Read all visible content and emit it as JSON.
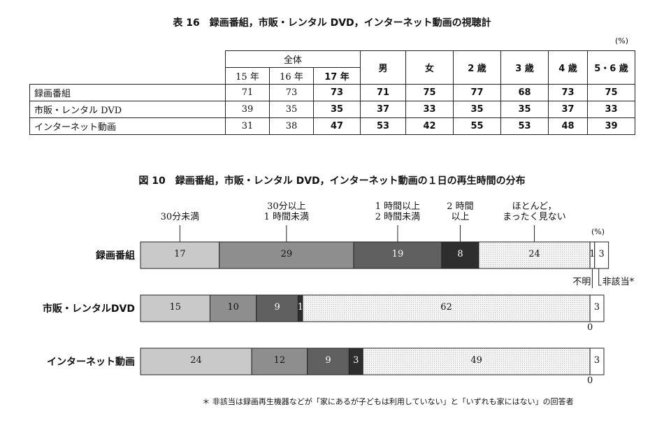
{
  "table": {
    "title": "表 16　録画番組，市販・レンタル DVD，インターネット動画の視聴計",
    "unit": "(%)",
    "group_header": "全体",
    "group_columns": [
      "15 年",
      "16 年",
      "17 年"
    ],
    "columns": [
      "男",
      "女",
      "2 歳",
      "3 歳",
      "4 歳",
      "5・6 歳"
    ],
    "rows": [
      {
        "label": "録画番組",
        "values": [
          71,
          73,
          73,
          71,
          75,
          77,
          68,
          73,
          75
        ]
      },
      {
        "label": "市販・レンタル DVD",
        "values": [
          39,
          35,
          35,
          37,
          33,
          35,
          35,
          37,
          33
        ]
      },
      {
        "label": "インターネット動画",
        "values": [
          31,
          38,
          47,
          53,
          42,
          55,
          53,
          48,
          39
        ]
      }
    ]
  },
  "chart_data": {
    "type": "bar",
    "orientation": "horizontal",
    "stacked": true,
    "title": "図 10　録画番組，市販・レンタル DVD，インターネット動画の１日の再生時間の分布",
    "unit": "(%)",
    "categories": [
      "録画番組",
      "市販・レンタルDVD",
      "インターネット動画"
    ],
    "series": [
      {
        "name": "30分未満",
        "color": "#c9c9c9",
        "values": [
          17,
          15,
          24
        ]
      },
      {
        "name": "30分以上\n1 時間未満",
        "color": "#8e8e8e",
        "values": [
          29,
          10,
          12
        ]
      },
      {
        "name": "1 時間以上\n2 時間未満",
        "color": "#606060",
        "values": [
          19,
          9,
          9
        ]
      },
      {
        "name": "2 時間\n以上",
        "color": "#2e2e2e",
        "values": [
          8,
          1,
          3
        ]
      },
      {
        "name": "ほとんど，\nまったく見ない",
        "color": "#f4f4f4",
        "pattern": "dots",
        "values": [
          24,
          62,
          49
        ]
      },
      {
        "name": "不明",
        "color": "#ffffff",
        "values": [
          1,
          0,
          0
        ]
      },
      {
        "name": "非該当*",
        "color": "#ffffff",
        "values": [
          3,
          3,
          3
        ]
      }
    ]
  },
  "footnote": "＊ 非該当は録画再生機器などが「家にあるが子どもは利用していない」と「いずれも家にはない」の回答者"
}
